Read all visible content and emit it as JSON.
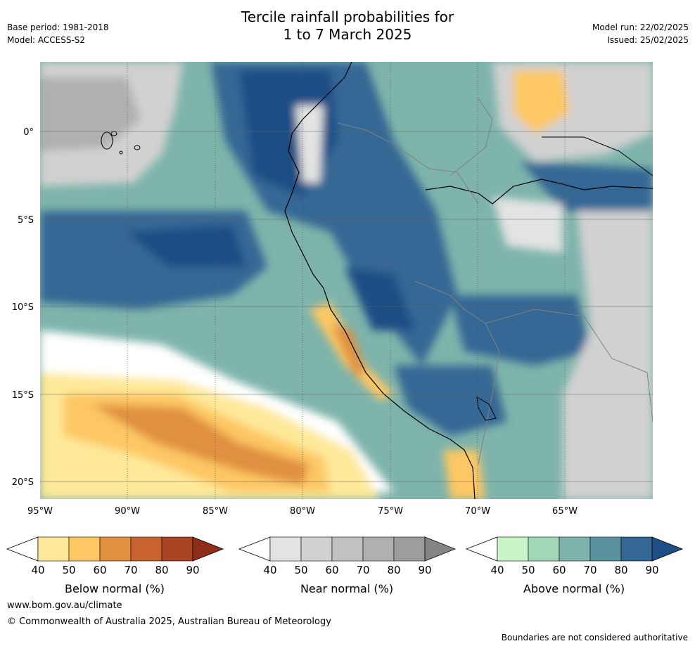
{
  "header": {
    "title_line1": "Tercile rainfall probabilities for",
    "title_line2": "1 to 7 March 2025",
    "base_period": "Base period: 1981-2018",
    "model": "Model: ACCESS-S2",
    "model_run": "Model run: 22/02/2025",
    "issued": "Issued: 25/02/2025"
  },
  "map": {
    "lat_labels": [
      "0°",
      "5°S",
      "10°S",
      "15°S",
      "20°S"
    ],
    "lon_labels": [
      "95°W",
      "90°W",
      "85°W",
      "80°W",
      "75°W",
      "70°W",
      "65°W"
    ]
  },
  "colorbars": [
    {
      "name": "below-normal",
      "label": "Below normal (%)",
      "ticks": [
        "40",
        "50",
        "60",
        "70",
        "80",
        "90"
      ],
      "colors": [
        "#ffffff",
        "#fee99a",
        "#fdc763",
        "#e0903f",
        "#c8622e",
        "#a94525",
        "#8e2e1a"
      ]
    },
    {
      "name": "near-normal",
      "label": "Near normal (%)",
      "ticks": [
        "40",
        "50",
        "60",
        "70",
        "80",
        "90"
      ],
      "colors": [
        "#ffffff",
        "#e3e3e3",
        "#d1d1d1",
        "#c1c1c1",
        "#b0b0b0",
        "#9d9d9d",
        "#858585"
      ]
    },
    {
      "name": "above-normal",
      "label": "Above normal (%)",
      "ticks": [
        "40",
        "50",
        "60",
        "70",
        "80",
        "90"
      ],
      "colors": [
        "#ffffff",
        "#c8f5c8",
        "#a2d6b8",
        "#7eb4ab",
        "#5a92a0",
        "#346894",
        "#1d4e85"
      ]
    }
  ],
  "footer": {
    "url": "www.bom.gov.au/climate",
    "copyright": "© Commonwealth of Australia 2025, Australian Bureau of Meteorology",
    "disclaimer": "Boundaries are not considered authoritative"
  }
}
